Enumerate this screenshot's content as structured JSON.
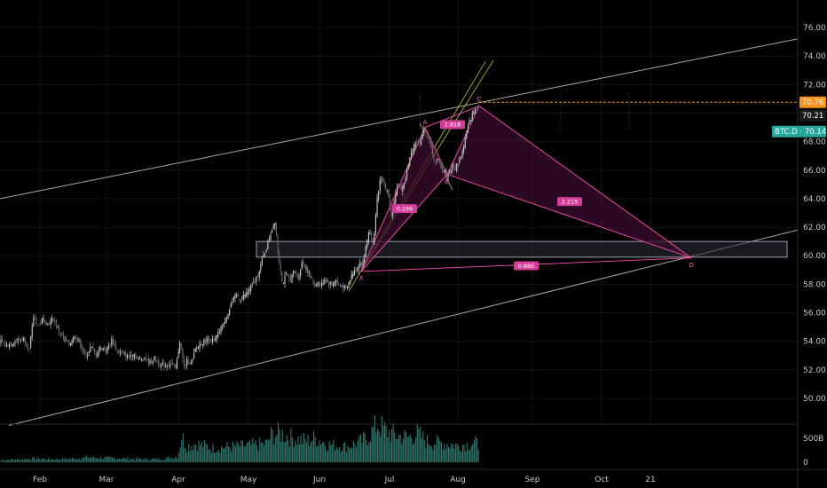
{
  "chart_data": {
    "type": "candlestick",
    "symbol": "BTC.D",
    "y_ticks": [
      "76.00",
      "74.00",
      "72.00",
      "70.00",
      "68.00",
      "66.00",
      "64.00",
      "62.00",
      "60.00",
      "58.00",
      "56.00",
      "54.00",
      "52.00",
      "50.00"
    ],
    "y_tick_values": [
      76,
      74,
      72,
      70,
      68,
      66,
      64,
      62,
      60,
      58,
      56,
      54,
      52,
      50
    ],
    "ylim": [
      48.1,
      77.3
    ],
    "x_ticks": [
      "Feb",
      "Mar",
      "Apr",
      "May",
      "Jun",
      "Jul",
      "Aug",
      "Sep",
      "Oct",
      "21"
    ],
    "price_tags": [
      {
        "label": "70.76",
        "value": 70.76,
        "color": "#f7931a"
      },
      {
        "label": "70.21",
        "value": 70.21,
        "color": "#1a1a1a"
      },
      {
        "label": "BTC.D · 70.14",
        "value": 70.14,
        "color": "#26a69a"
      }
    ],
    "orange_line_value": 70.76,
    "price_path": [
      [
        1,
        54.0
      ],
      [
        7,
        53.7
      ],
      [
        14,
        53.9
      ],
      [
        20,
        54.1
      ],
      [
        27,
        54.2
      ],
      [
        33,
        53.4
      ],
      [
        38,
        55.8
      ],
      [
        43,
        55.0
      ],
      [
        48,
        55.6
      ],
      [
        54,
        55.2
      ],
      [
        60,
        55.6
      ],
      [
        66,
        54.8
      ],
      [
        72,
        54.1
      ],
      [
        78,
        53.8
      ],
      [
        84,
        54.4
      ],
      [
        90,
        53.9
      ],
      [
        96,
        52.9
      ],
      [
        102,
        53.6
      ],
      [
        108,
        53.1
      ],
      [
        114,
        53.6
      ],
      [
        120,
        53.4
      ],
      [
        126,
        54.1
      ],
      [
        132,
        53.3
      ],
      [
        138,
        53.2
      ],
      [
        144,
        52.9
      ],
      [
        150,
        53.2
      ],
      [
        156,
        52.7
      ],
      [
        162,
        52.9
      ],
      [
        168,
        52.5
      ],
      [
        174,
        52.8
      ],
      [
        180,
        52.4
      ],
      [
        186,
        52.3
      ],
      [
        192,
        52.5
      ],
      [
        198,
        52.0
      ],
      [
        203,
        54.2
      ],
      [
        207,
        52.1
      ],
      [
        211,
        52.7
      ],
      [
        216,
        52.4
      ],
      [
        220,
        53.4
      ],
      [
        225,
        53.8
      ],
      [
        230,
        54.0
      ],
      [
        236,
        54.2
      ],
      [
        242,
        54.0
      ],
      [
        248,
        54.8
      ],
      [
        254,
        55.5
      ],
      [
        260,
        56.6
      ],
      [
        266,
        57.2
      ],
      [
        272,
        57.0
      ],
      [
        278,
        57.4
      ],
      [
        284,
        57.9
      ],
      [
        290,
        58.6
      ],
      [
        295,
        59.6
      ],
      [
        300,
        60.5
      ],
      [
        305,
        61.6
      ],
      [
        310,
        62.5
      ],
      [
        313,
        60.3
      ],
      [
        316,
        59.2
      ],
      [
        318,
        58.0
      ],
      [
        322,
        58.6
      ],
      [
        327,
        58.3
      ],
      [
        331,
        58.9
      ],
      [
        336,
        58.5
      ],
      [
        340,
        59.5
      ],
      [
        345,
        59.2
      ],
      [
        350,
        58.5
      ],
      [
        354,
        57.9
      ],
      [
        358,
        58.2
      ],
      [
        362,
        57.9
      ],
      [
        366,
        58.4
      ],
      [
        370,
        58.1
      ],
      [
        374,
        58.0
      ],
      [
        378,
        58.3
      ],
      [
        382,
        57.9
      ],
      [
        386,
        57.9
      ],
      [
        390,
        57.6
      ],
      [
        394,
        58.2
      ],
      [
        398,
        58.9
      ],
      [
        402,
        59.1
      ],
      [
        406,
        59.6
      ],
      [
        408,
        59.2
      ],
      [
        411,
        60.2
      ],
      [
        414,
        61.3
      ],
      [
        417,
        61.8
      ],
      [
        421,
        60.9
      ],
      [
        425,
        63.9
      ],
      [
        429,
        65.6
      ],
      [
        433,
        65.0
      ],
      [
        437,
        64.3
      ],
      [
        441,
        63.0
      ],
      [
        445,
        64.1
      ],
      [
        449,
        65.0
      ],
      [
        453,
        64.6
      ],
      [
        457,
        65.5
      ],
      [
        461,
        66.6
      ],
      [
        465,
        67.6
      ],
      [
        469,
        68.1
      ],
      [
        472,
        67.8
      ],
      [
        476,
        68.5
      ],
      [
        479,
        68.9
      ],
      [
        483,
        68.2
      ],
      [
        487,
        67.3
      ],
      [
        490,
        66.4
      ],
      [
        494,
        66.7
      ],
      [
        498,
        66.1
      ],
      [
        501,
        65.9
      ],
      [
        504,
        65.6
      ],
      [
        507,
        65.9
      ],
      [
        510,
        66.3
      ],
      [
        513,
        66.1
      ],
      [
        517,
        66.7
      ],
      [
        521,
        67.3
      ],
      [
        525,
        68.4
      ],
      [
        529,
        69.4
      ],
      [
        533,
        70.0
      ],
      [
        537,
        70.5
      ],
      [
        540,
        70.3
      ]
    ],
    "volume_path": [
      [
        1,
        0.1
      ],
      [
        20,
        0.12
      ],
      [
        40,
        0.16
      ],
      [
        60,
        0.13
      ],
      [
        80,
        0.15
      ],
      [
        100,
        0.21
      ],
      [
        120,
        0.18
      ],
      [
        140,
        0.16
      ],
      [
        160,
        0.13
      ],
      [
        180,
        0.13
      ],
      [
        200,
        0.23
      ],
      [
        204,
        1.1
      ],
      [
        210,
        0.68
      ],
      [
        220,
        0.79
      ],
      [
        240,
        0.59
      ],
      [
        260,
        0.66
      ],
      [
        280,
        0.7
      ],
      [
        300,
        0.78
      ],
      [
        305,
        1.13
      ],
      [
        315,
        1.22
      ],
      [
        330,
        1.0
      ],
      [
        345,
        0.9
      ],
      [
        355,
        1.01
      ],
      [
        370,
        0.74
      ],
      [
        390,
        0.66
      ],
      [
        405,
        0.84
      ],
      [
        415,
        1.09
      ],
      [
        425,
        1.6
      ],
      [
        435,
        1.3
      ],
      [
        445,
        1.12
      ],
      [
        460,
        1.04
      ],
      [
        470,
        1.2
      ],
      [
        480,
        0.88
      ],
      [
        500,
        0.79
      ],
      [
        515,
        0.7
      ],
      [
        525,
        0.76
      ],
      [
        535,
        0.82
      ],
      [
        540,
        0.7
      ]
    ],
    "volume_ticks": [
      "500B",
      "0"
    ],
    "harmonic": {
      "points": [
        {
          "label": "X",
          "x": 407,
          "value": 58.9
        },
        {
          "label": "A",
          "x": 479,
          "value": 69.0
        },
        {
          "label": "B",
          "x": 504,
          "value": 65.7
        },
        {
          "label": "C",
          "x": 540,
          "value": 70.5
        },
        {
          "label": "D",
          "x": 779,
          "value": 59.85
        }
      ],
      "ratios": [
        {
          "label": "0.299",
          "x": 456,
          "value": 63.3
        },
        {
          "label": "1.618",
          "x": 510,
          "value": 69.2
        },
        {
          "label": "2.215",
          "x": 642,
          "value": 63.8
        },
        {
          "label": "0.886",
          "x": 593,
          "value": 59.3
        }
      ]
    },
    "zone": {
      "x_from": 289,
      "x_to": 887,
      "y_from": 59.9,
      "y_to": 61.0
    },
    "channel_upper": {
      "x1": 0,
      "v1": 64.0,
      "x2": 899,
      "v2": 75.2
    },
    "channel_lower": {
      "x1": 10,
      "v1": 48.1,
      "x2": 899,
      "v2": 61.8
    },
    "yellow_lines": [
      {
        "x1": 393,
        "v1": 57.5,
        "x2": 547,
        "v2": 73.6
      },
      {
        "x1": 407,
        "v1": 58.9,
        "x2": 556,
        "v2": 73.7
      },
      {
        "x1": 473,
        "v1": 69.3,
        "x2": 510,
        "v2": 64.6
      }
    ],
    "month_lines_x": [
      280,
      439,
      516
    ]
  },
  "colors": {
    "background": "#000000",
    "grid": "#151515",
    "candle_up": "#cfcfcf",
    "candle_down": "#6e6e6e",
    "volume": "#3a8f86",
    "pattern": "#ff4fb5",
    "pattern_fill": "#3a0c2d",
    "channel": "#a9a9a9",
    "yellow": "#bfbf3a",
    "orange": "#f7931a",
    "teal": "#26a69a"
  }
}
